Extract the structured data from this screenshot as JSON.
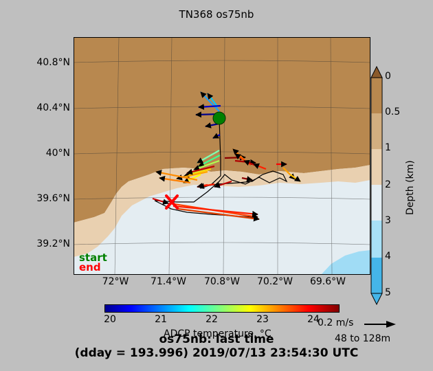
{
  "title": "TN368 os75nb",
  "map": {
    "lat_labels": [
      "40.8°N",
      "40.4°N",
      "40°N",
      "39.6°N",
      "39.2°N"
    ],
    "lon_labels": [
      "72°W",
      "71.4°W",
      "70.8°W",
      "70.2°W",
      "69.6°W"
    ],
    "colors": {
      "land": "#b8884f",
      "shelf": "#e9d0b0",
      "deep": "#e4edf2",
      "abyss": "#a0dcf5",
      "track": "#000000",
      "start_marker": "#008000",
      "end_marker": "#ff0000"
    }
  },
  "legend": {
    "start": "start",
    "end": "end"
  },
  "depth_scale": {
    "ticks": [
      "0",
      "0.5",
      "1",
      "2",
      "3",
      "4",
      "5"
    ],
    "label": "Depth (km)",
    "colors": [
      "#b8884f",
      "#d2ae80",
      "#e9d0b0",
      "#e4edf2",
      "#a8e0f6",
      "#45b5e8"
    ]
  },
  "colorbar": {
    "ticks": [
      "20",
      "21",
      "22",
      "23",
      "24"
    ],
    "label": "ADCP temperature, °C",
    "min": 19.9,
    "max": 24.5
  },
  "scale_arrow": {
    "speed": "0.2 m/s",
    "depth_range": "48 to 128m"
  },
  "caption": {
    "line1": "os75nb: last time",
    "line2": "(dday = 193.996) 2019/07/13 23:54:30 UTC"
  }
}
